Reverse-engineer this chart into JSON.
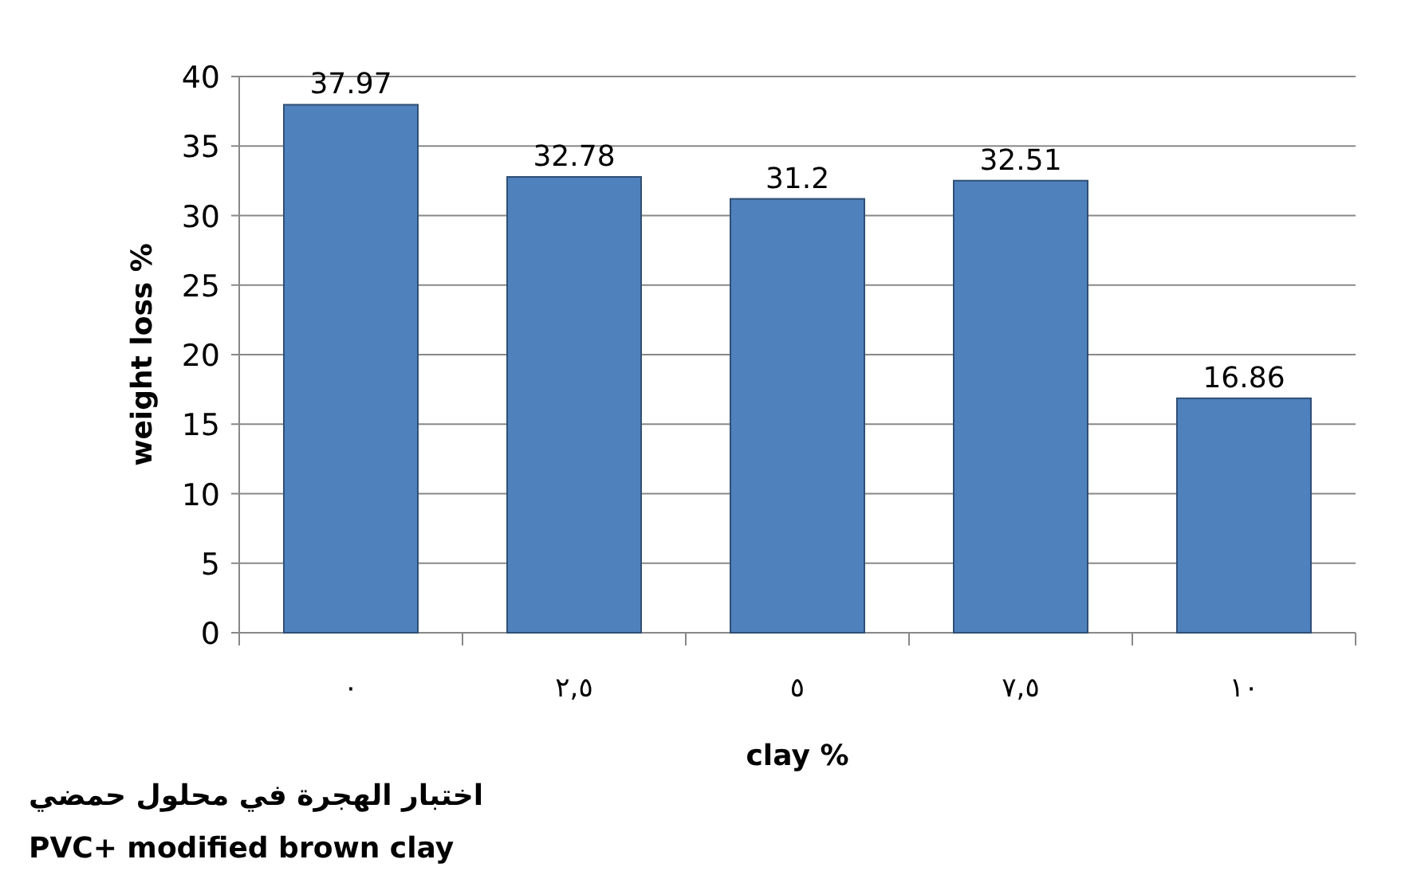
{
  "chart_data": {
    "type": "bar",
    "xlabel": "clay  %",
    "ylabel": "weight loss   %",
    "categories": [
      "٠",
      "٢,٥",
      "٥",
      "٧,٥",
      "١٠"
    ],
    "values": [
      37.97,
      32.78,
      31.2,
      32.51,
      16.86
    ],
    "color": "#4f81bd",
    "data_labels": true,
    "grid": "y",
    "ylim": [
      0,
      40
    ],
    "yticks": [
      0,
      5,
      10,
      15,
      20,
      25,
      30,
      35,
      40
    ],
    "annotations": [
      "اختبار الهجرة في محلول حمضي",
      "PVC+ modified brown clay"
    ]
  }
}
